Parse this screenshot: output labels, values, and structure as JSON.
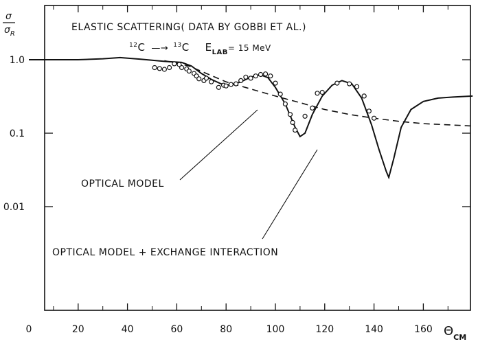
{
  "chart_data": {
    "type": "line",
    "title": "ELASTIC SCATTERING( DATA BY GOBBI ET AL.)",
    "reaction": {
      "projectile_mass": "12",
      "projectile": "C",
      "arrow": "—→",
      "target_mass": "13",
      "target": "C",
      "energy_label": "E",
      "energy_sub": "LAB",
      "energy_value": "= 15 MeV"
    },
    "ylabel": {
      "num": "σ",
      "den": "σ",
      "den_sub": "R"
    },
    "xlabel": {
      "main": "Θ",
      "sub": "CM"
    },
    "x_ticks": [
      "0",
      "20",
      "40",
      "60",
      "80",
      "100",
      "120",
      "140",
      "160"
    ],
    "y_ticks": [
      {
        "value": 1.0,
        "label": "1.0"
      },
      {
        "value": 0.1,
        "label": "0.1"
      },
      {
        "value": 0.01,
        "label": "0.01"
      }
    ],
    "xlim": [
      0,
      180
    ],
    "ylim": [
      0.003,
      3
    ],
    "yscale": "log",
    "annotations": [
      {
        "text": "OPTICAL MODEL",
        "points_to": "dashed"
      },
      {
        "text": "OPTICAL MODEL + EXCHANGE INTERACTION",
        "points_to": "solid"
      }
    ],
    "series": [
      {
        "style": "solid",
        "points": [
          [
            0,
            1.0
          ],
          [
            10,
            1.0
          ],
          [
            20,
            1.0
          ],
          [
            30,
            1.03
          ],
          [
            37,
            1.07
          ],
          [
            45,
            1.02
          ],
          [
            55,
            0.95
          ],
          [
            62,
            0.92
          ],
          [
            66,
            0.82
          ],
          [
            70,
            0.65
          ],
          [
            74,
            0.54
          ],
          [
            78,
            0.47
          ],
          [
            82,
            0.45
          ],
          [
            86,
            0.5
          ],
          [
            90,
            0.58
          ],
          [
            94,
            0.62
          ],
          [
            97,
            0.57
          ],
          [
            100,
            0.42
          ],
          [
            104,
            0.25
          ],
          [
            108,
            0.12
          ],
          [
            110,
            0.09
          ],
          [
            112,
            0.1
          ],
          [
            115,
            0.18
          ],
          [
            119,
            0.32
          ],
          [
            123,
            0.45
          ],
          [
            127,
            0.52
          ],
          [
            131,
            0.47
          ],
          [
            135,
            0.3
          ],
          [
            139,
            0.13
          ],
          [
            142,
            0.06
          ],
          [
            145,
            0.03
          ],
          [
            146,
            0.025
          ],
          [
            148,
            0.045
          ],
          [
            151,
            0.12
          ],
          [
            155,
            0.21
          ],
          [
            160,
            0.27
          ],
          [
            166,
            0.3
          ],
          [
            172,
            0.31
          ],
          [
            180,
            0.32
          ]
        ]
      },
      {
        "style": "dashed",
        "points": [
          [
            55,
            0.97
          ],
          [
            65,
            0.82
          ],
          [
            72,
            0.65
          ],
          [
            80,
            0.5
          ],
          [
            90,
            0.4
          ],
          [
            100,
            0.32
          ],
          [
            110,
            0.26
          ],
          [
            120,
            0.21
          ],
          [
            130,
            0.18
          ],
          [
            140,
            0.16
          ],
          [
            150,
            0.145
          ],
          [
            160,
            0.135
          ],
          [
            170,
            0.13
          ],
          [
            180,
            0.125
          ]
        ]
      },
      {
        "style": "markers",
        "marker": "open-circle",
        "points": [
          [
            51,
            0.78
          ],
          [
            53,
            0.76
          ],
          [
            55,
            0.74
          ],
          [
            57,
            0.78
          ],
          [
            59,
            0.88
          ],
          [
            61,
            0.86
          ],
          [
            62,
            0.78
          ],
          [
            64,
            0.75
          ],
          [
            65,
            0.7
          ],
          [
            67,
            0.65
          ],
          [
            68,
            0.6
          ],
          [
            69,
            0.55
          ],
          [
            71,
            0.52
          ],
          [
            72,
            0.56
          ],
          [
            74,
            0.5
          ],
          [
            77,
            0.42
          ],
          [
            79,
            0.45
          ],
          [
            80,
            0.44
          ],
          [
            82,
            0.46
          ],
          [
            84,
            0.47
          ],
          [
            86,
            0.52
          ],
          [
            88,
            0.58
          ],
          [
            90,
            0.56
          ],
          [
            92,
            0.6
          ],
          [
            94,
            0.63
          ],
          [
            96,
            0.64
          ],
          [
            98,
            0.6
          ],
          [
            100,
            0.48
          ],
          [
            102,
            0.34
          ],
          [
            104,
            0.25
          ],
          [
            106,
            0.18
          ],
          [
            107,
            0.14
          ],
          [
            108,
            0.11
          ],
          [
            112,
            0.17
          ],
          [
            115,
            0.22
          ],
          [
            117,
            0.35
          ],
          [
            119,
            0.36
          ],
          [
            125,
            0.48
          ],
          [
            130,
            0.47
          ],
          [
            133,
            0.43
          ],
          [
            136,
            0.32
          ],
          [
            138,
            0.2
          ],
          [
            140,
            0.16
          ]
        ]
      }
    ]
  }
}
